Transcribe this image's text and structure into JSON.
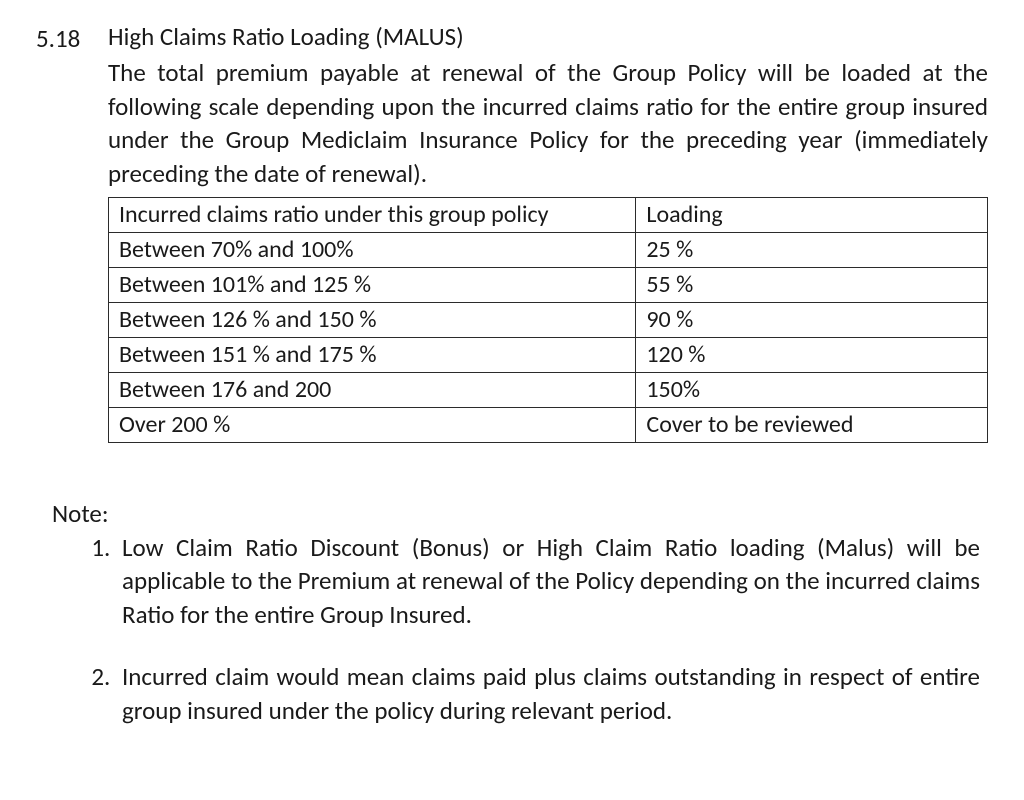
{
  "section": {
    "number": "5.18",
    "title": "High Claims Ratio Loading (MALUS)",
    "paragraph": "The total premium payable at renewal of the Group Policy will be loaded at the following scale depending upon the incurred claims ratio for the entire group insured under the Group Mediclaim Insurance Policy for the preceding year (immediately preceding the date of renewal)."
  },
  "table": {
    "type": "table",
    "columns": [
      "Incurred claims ratio under this group policy",
      "Loading"
    ],
    "column_widths_pct": [
      60,
      40
    ],
    "border_color": "#2b2b2b",
    "font_size_pt": 18,
    "rows": [
      [
        "Between 70% and 100%",
        "25 %"
      ],
      [
        "Between 101% and 125 %",
        "55 %"
      ],
      [
        "Between 126 % and 150 %",
        "90 %"
      ],
      [
        "Between 151 % and 175 %",
        "120 %"
      ],
      [
        "Between 176 and 200",
        "150%"
      ],
      [
        "Over 200 %",
        "Cover to be reviewed"
      ]
    ]
  },
  "note": {
    "label": "Note:",
    "items": [
      "Low Claim Ratio Discount (Bonus) or High Claim Ratio loading (Malus) will be applicable to the Premium at renewal of the Policy depending on the incurred claims Ratio for the entire Group Insured.",
      "Incurred claim would mean claims paid plus claims outstanding in respect of entire group insured under the policy during relevant period."
    ]
  },
  "style": {
    "background_color": "#ffffff",
    "text_color": "#1a1a1a",
    "body_font_size_pt": 19,
    "line_height": 1.35
  }
}
